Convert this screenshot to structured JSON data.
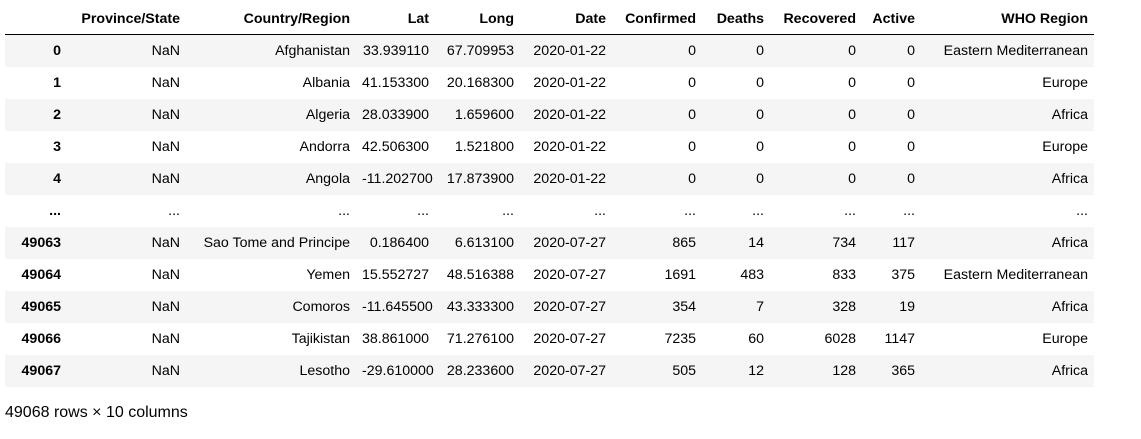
{
  "dataframe": {
    "index_header": "",
    "columns": [
      "Province/State",
      "Country/Region",
      "Lat",
      "Long",
      "Date",
      "Confirmed",
      "Deaths",
      "Recovered",
      "Active",
      "WHO Region"
    ],
    "rows": [
      {
        "index": "0",
        "cells": [
          "NaN",
          "Afghanistan",
          "33.939110",
          "67.709953",
          "2020-01-22",
          "0",
          "0",
          "0",
          "0",
          "Eastern Mediterranean"
        ]
      },
      {
        "index": "1",
        "cells": [
          "NaN",
          "Albania",
          "41.153300",
          "20.168300",
          "2020-01-22",
          "0",
          "0",
          "0",
          "0",
          "Europe"
        ]
      },
      {
        "index": "2",
        "cells": [
          "NaN",
          "Algeria",
          "28.033900",
          "1.659600",
          "2020-01-22",
          "0",
          "0",
          "0",
          "0",
          "Africa"
        ]
      },
      {
        "index": "3",
        "cells": [
          "NaN",
          "Andorra",
          "42.506300",
          "1.521800",
          "2020-01-22",
          "0",
          "0",
          "0",
          "0",
          "Europe"
        ]
      },
      {
        "index": "4",
        "cells": [
          "NaN",
          "Angola",
          "-11.202700",
          "17.873900",
          "2020-01-22",
          "0",
          "0",
          "0",
          "0",
          "Africa"
        ]
      },
      {
        "index": "...",
        "cells": [
          "...",
          "...",
          "...",
          "...",
          "...",
          "...",
          "...",
          "...",
          "...",
          "..."
        ]
      },
      {
        "index": "49063",
        "cells": [
          "NaN",
          "Sao Tome and Principe",
          "0.186400",
          "6.613100",
          "2020-07-27",
          "865",
          "14",
          "734",
          "117",
          "Africa"
        ]
      },
      {
        "index": "49064",
        "cells": [
          "NaN",
          "Yemen",
          "15.552727",
          "48.516388",
          "2020-07-27",
          "1691",
          "483",
          "833",
          "375",
          "Eastern Mediterranean"
        ]
      },
      {
        "index": "49065",
        "cells": [
          "NaN",
          "Comoros",
          "-11.645500",
          "43.333300",
          "2020-07-27",
          "354",
          "7",
          "328",
          "19",
          "Africa"
        ]
      },
      {
        "index": "49066",
        "cells": [
          "NaN",
          "Tajikistan",
          "38.861000",
          "71.276100",
          "2020-07-27",
          "7235",
          "60",
          "6028",
          "1147",
          "Europe"
        ]
      },
      {
        "index": "49067",
        "cells": [
          "NaN",
          "Lesotho",
          "-29.610000",
          "28.233600",
          "2020-07-27",
          "505",
          "12",
          "128",
          "365",
          "Africa"
        ]
      }
    ],
    "shape_text": "49068 rows × 10 columns"
  }
}
